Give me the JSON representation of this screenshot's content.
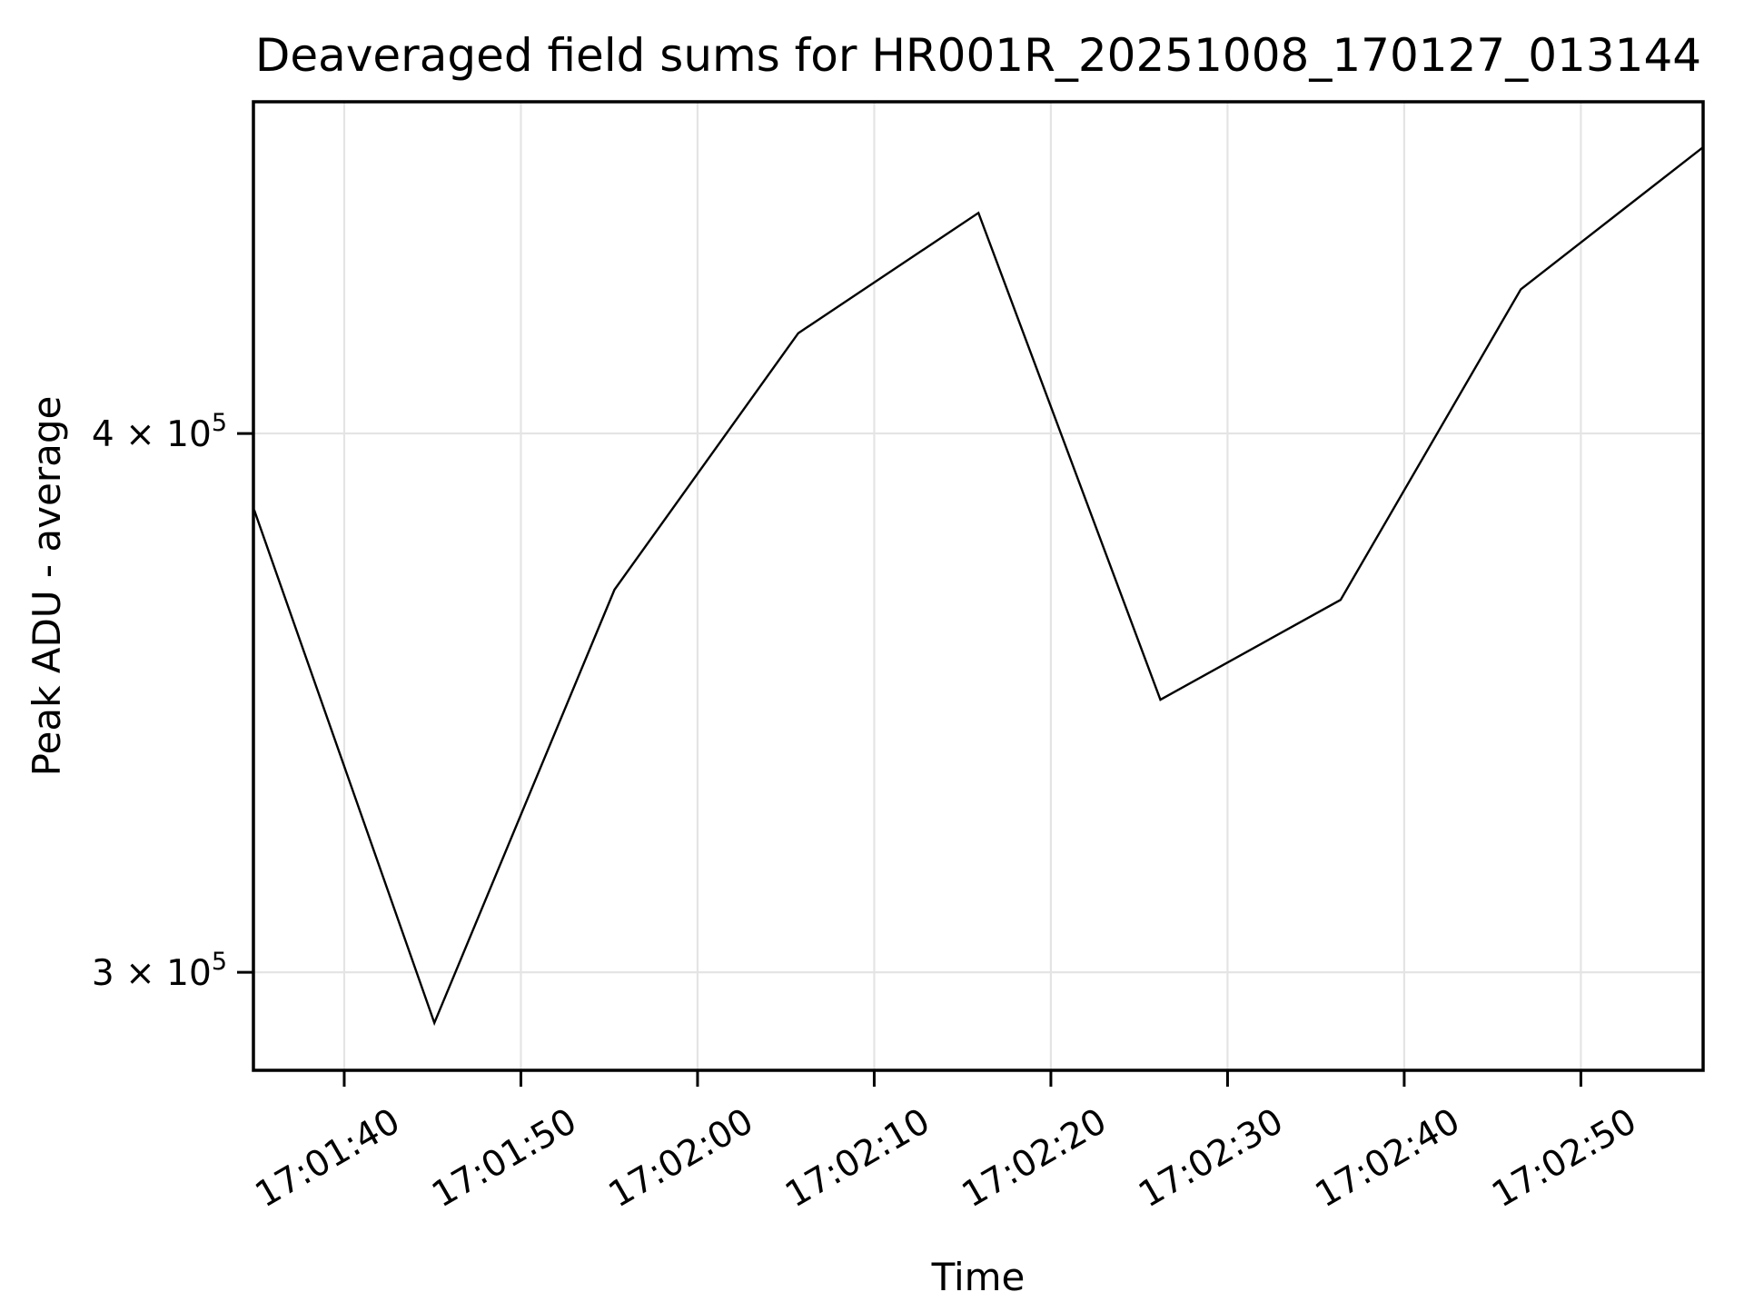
{
  "title": "Deaveraged field sums for HR001R_20251008_170127_013144",
  "x_axis": {
    "label": "Time",
    "tick_labels": [
      "17:01:40",
      "17:01:50",
      "17:02:00",
      "17:02:10",
      "17:02:20",
      "17:02:30",
      "17:02:40",
      "17:02:50"
    ],
    "tick_seconds": [
      100,
      110,
      120,
      130,
      140,
      150,
      160,
      170
    ],
    "range_seconds": [
      94.86,
      176.92
    ],
    "tick_rotation_deg": 30
  },
  "y_axis": {
    "label": "Peak ADU - average",
    "scale": "log",
    "ticks": [
      {
        "prefix": "3 × 10",
        "superscript": "5",
        "value": 300000
      },
      {
        "prefix": "4 × 10",
        "superscript": "5",
        "value": 400000
      }
    ],
    "range": [
      284700,
      477500
    ]
  },
  "chart_data": {
    "type": "line",
    "title": "Deaveraged field sums for HR001R_20251008_170127_013144",
    "xlabel": "Time",
    "ylabel": "Peak ADU - average",
    "yscale": "log",
    "grid": true,
    "legend_position": "none",
    "x": [
      "17:01:35",
      "17:01:45",
      "17:01:55",
      "17:02:06",
      "17:02:16",
      "17:02:26",
      "17:02:36",
      "17:02:47",
      "17:02:57"
    ],
    "x_seconds_after_17h": [
      94.9,
      105.1,
      115.3,
      125.7,
      135.9,
      146.2,
      156.4,
      166.6,
      176.9
    ],
    "series": [
      {
        "name": "Peak ADU - average",
        "values": [
          384000,
          292000,
          368000,
          422000,
          450000,
          347000,
          366000,
          432000,
          466000
        ]
      }
    ],
    "xlim_seconds_after_17h": [
      94.86,
      176.92
    ],
    "ylim": [
      284700,
      477500
    ]
  },
  "colors": {
    "background": "#ffffff",
    "grid": "#e4e4e4",
    "spine": "#000000",
    "line": "#000000",
    "text": "#000000"
  }
}
